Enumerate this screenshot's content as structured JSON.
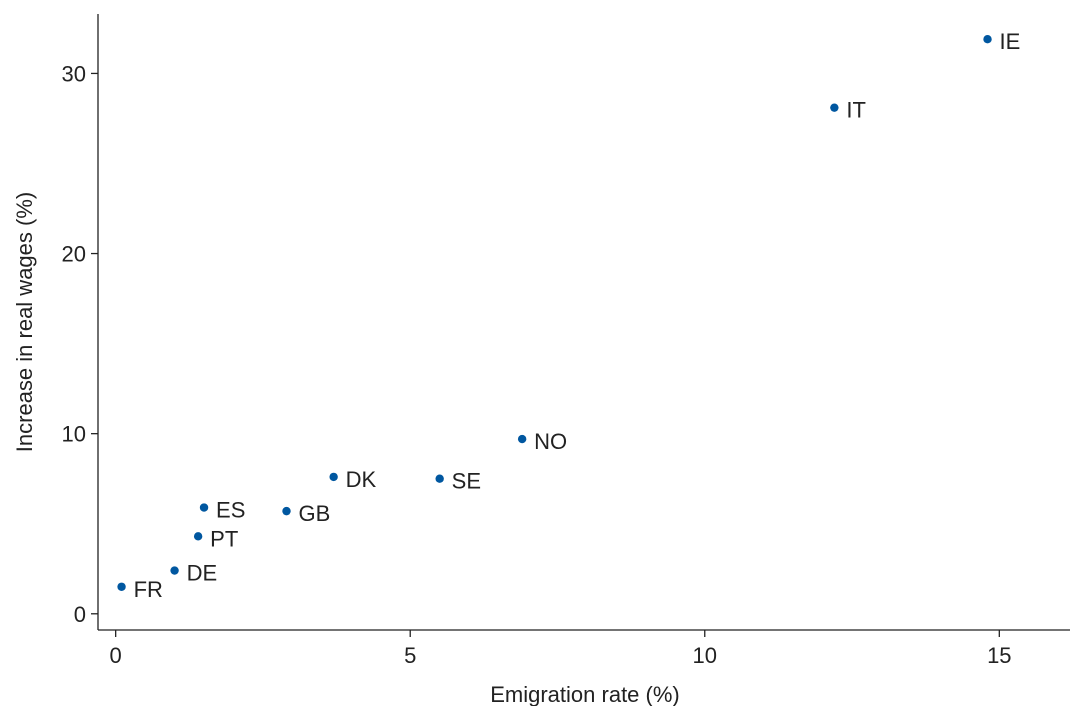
{
  "chart_data": {
    "type": "scatter",
    "title": "",
    "xlabel": "Emigration rate (%)",
    "ylabel": "Increase in real wages (%)",
    "xlim": [
      -0.3,
      16.2
    ],
    "ylim": [
      -0.9,
      33.3
    ],
    "xticks": [
      0,
      5,
      10,
      15
    ],
    "yticks": [
      0,
      10,
      20,
      30
    ],
    "grid": false,
    "point_color": "#0057a0",
    "points": [
      {
        "label": "IE",
        "x": 14.8,
        "y": 31.9
      },
      {
        "label": "IT",
        "x": 12.2,
        "y": 28.1
      },
      {
        "label": "NO",
        "x": 6.9,
        "y": 9.7
      },
      {
        "label": "SE",
        "x": 5.5,
        "y": 7.5
      },
      {
        "label": "DK",
        "x": 3.7,
        "y": 7.6
      },
      {
        "label": "GB",
        "x": 2.9,
        "y": 5.7
      },
      {
        "label": "ES",
        "x": 1.5,
        "y": 5.9
      },
      {
        "label": "PT",
        "x": 1.4,
        "y": 4.3
      },
      {
        "label": "DE",
        "x": 1.0,
        "y": 2.4
      },
      {
        "label": "FR",
        "x": 0.1,
        "y": 1.5
      }
    ]
  }
}
